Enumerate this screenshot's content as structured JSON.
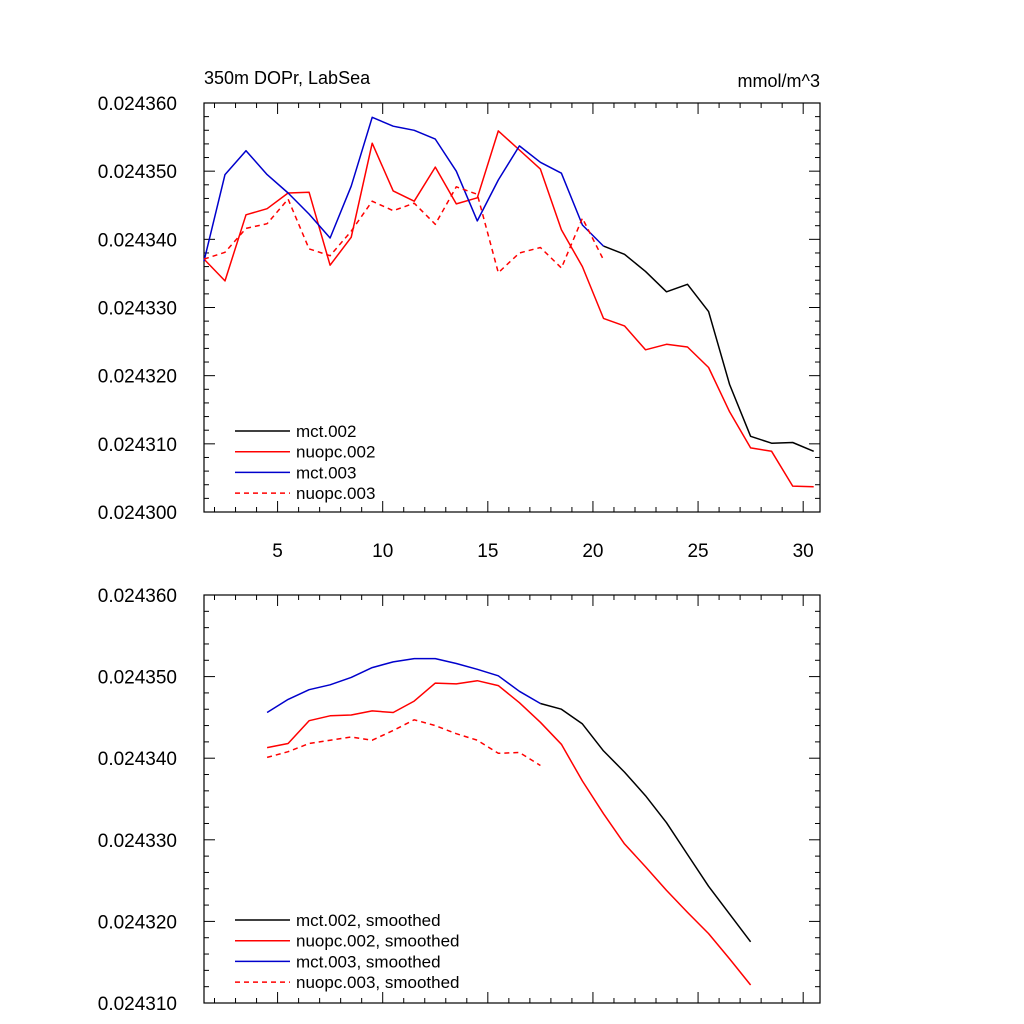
{
  "chart_data": [
    {
      "type": "line",
      "title": "350m DOPr, LabSea",
      "units": "mmol/m^3",
      "xlim": [
        1.5,
        30.8
      ],
      "ylim": [
        0.0243,
        0.02436
      ],
      "xticks": [
        5,
        10,
        15,
        20,
        25,
        30
      ],
      "xtick_labels": [
        "5",
        "10",
        "15",
        "20",
        "25",
        "30"
      ],
      "yticks": [
        0.0243,
        0.02431,
        0.02432,
        0.02433,
        0.02434,
        0.02435,
        0.02436
      ],
      "ytick_labels": [
        "0.024300",
        "0.024310",
        "0.024320",
        "0.024330",
        "0.024340",
        "0.024350",
        "0.024360"
      ],
      "legend_position": "bottom-left",
      "series": [
        {
          "name": "mct.002",
          "color": "#000000",
          "dashed": false,
          "x": [
            20.5,
            21.5,
            22.5,
            23.5,
            24.5,
            25.5,
            26.5,
            27.5,
            28.5,
            29.5,
            30.5
          ],
          "y": [
            0.024339,
            0.0243378,
            0.0243353,
            0.0243323,
            0.0243334,
            0.0243294,
            0.0243187,
            0.0243111,
            0.0243101,
            0.0243102,
            0.0243089
          ]
        },
        {
          "name": "nuopc.002",
          "color": "#ff0000",
          "dashed": false,
          "x": [
            1.5,
            2.5,
            3.5,
            4.5,
            5.5,
            6.5,
            7.5,
            8.5,
            9.5,
            10.5,
            11.5,
            12.5,
            13.5,
            14.5,
            15.5,
            16.5,
            17.5,
            18.5,
            19.5,
            20.5,
            21.5,
            22.5,
            23.5,
            24.5,
            25.5,
            26.5,
            27.5,
            28.5,
            29.5,
            30.5
          ],
          "y": [
            0.0243371,
            0.0243339,
            0.0243436,
            0.0243445,
            0.0243468,
            0.0243469,
            0.0243362,
            0.0243403,
            0.0243541,
            0.0243471,
            0.0243456,
            0.0243506,
            0.0243452,
            0.0243461,
            0.0243559,
            0.0243531,
            0.0243503,
            0.0243414,
            0.024336,
            0.0243284,
            0.0243273,
            0.0243238,
            0.0243246,
            0.0243242,
            0.0243212,
            0.0243147,
            0.0243094,
            0.0243089,
            0.0243038,
            0.0243037
          ]
        },
        {
          "name": "mct.003",
          "color": "#0000cc",
          "dashed": false,
          "x": [
            1.5,
            2.5,
            3.5,
            4.5,
            5.5,
            6.5,
            7.5,
            8.5,
            9.5,
            10.5,
            11.5,
            12.5,
            13.5,
            14.5,
            15.5,
            16.5,
            17.5,
            18.5,
            19.5,
            20.5
          ],
          "y": [
            0.0243368,
            0.0243495,
            0.024353,
            0.0243495,
            0.0243468,
            0.0243437,
            0.0243402,
            0.0243478,
            0.0243579,
            0.0243566,
            0.024356,
            0.0243547,
            0.02435,
            0.0243427,
            0.0243487,
            0.0243537,
            0.0243513,
            0.0243497,
            0.0243421,
            0.024339
          ]
        },
        {
          "name": "nuopc.003",
          "color": "#ff0000",
          "dashed": true,
          "x": [
            1.5,
            2.5,
            3.5,
            4.5,
            5.5,
            6.5,
            7.5,
            8.5,
            9.5,
            10.5,
            11.5,
            12.5,
            13.5,
            14.5,
            15.5,
            16.5,
            17.5,
            18.5,
            19.5,
            20.5
          ],
          "y": [
            0.0243371,
            0.0243381,
            0.0243416,
            0.0243423,
            0.0243459,
            0.0243386,
            0.0243376,
            0.0243412,
            0.0243456,
            0.0243442,
            0.0243453,
            0.0243422,
            0.0243477,
            0.0243466,
            0.0243351,
            0.024338,
            0.0243388,
            0.0243358,
            0.0243431,
            0.024337
          ]
        }
      ]
    },
    {
      "type": "line",
      "xlim": [
        1.5,
        30.8
      ],
      "ylim": [
        0.02431,
        0.02436
      ],
      "xticks": [
        5,
        10,
        15,
        20,
        25,
        30
      ],
      "yticks": [
        0.02431,
        0.02432,
        0.02433,
        0.02434,
        0.02435,
        0.02436
      ],
      "ytick_labels": [
        "0.024310",
        "0.024320",
        "0.024330",
        "0.024340",
        "0.024350",
        "0.024360"
      ],
      "legend_position": "bottom-left",
      "series": [
        {
          "name": "mct.002, smoothed",
          "color": "#000000",
          "dashed": false,
          "x": [
            17.5,
            18.5,
            19.5,
            20.5,
            21.5,
            22.5,
            23.5,
            24.5,
            25.5,
            26.5,
            27.5
          ],
          "y": [
            0.0243467,
            0.024346,
            0.0243442,
            0.0243409,
            0.0243383,
            0.0243354,
            0.0243321,
            0.0243282,
            0.0243243,
            0.0243209,
            0.0243175
          ]
        },
        {
          "name": "nuopc.002, smoothed",
          "color": "#ff0000",
          "dashed": false,
          "x": [
            4.5,
            5.5,
            6.5,
            7.5,
            8.5,
            9.5,
            10.5,
            11.5,
            12.5,
            13.5,
            14.5,
            15.5,
            16.5,
            17.5,
            18.5,
            19.5,
            20.5,
            21.5,
            22.5,
            23.5,
            24.5,
            25.5,
            26.5,
            27.5
          ],
          "y": [
            0.0243413,
            0.0243418,
            0.0243446,
            0.0243452,
            0.0243453,
            0.0243458,
            0.0243456,
            0.024347,
            0.0243492,
            0.0243491,
            0.0243495,
            0.0243489,
            0.0243468,
            0.0243444,
            0.0243417,
            0.0243372,
            0.0243332,
            0.0243295,
            0.0243267,
            0.0243238,
            0.0243211,
            0.0243185,
            0.0243154,
            0.0243122
          ]
        },
        {
          "name": "mct.003, smoothed",
          "color": "#0000cc",
          "dashed": false,
          "x": [
            4.5,
            5.5,
            6.5,
            7.5,
            8.5,
            9.5,
            10.5,
            11.5,
            12.5,
            13.5,
            14.5,
            15.5,
            16.5,
            17.5
          ],
          "y": [
            0.0243456,
            0.0243472,
            0.0243484,
            0.024349,
            0.0243499,
            0.0243511,
            0.0243518,
            0.0243522,
            0.0243522,
            0.0243516,
            0.0243509,
            0.0243501,
            0.0243482,
            0.0243467
          ]
        },
        {
          "name": "nuopc.003, smoothed",
          "color": "#ff0000",
          "dashed": true,
          "x": [
            4.5,
            5.5,
            6.5,
            7.5,
            8.5,
            9.5,
            10.5,
            11.5,
            12.5,
            13.5,
            14.5,
            15.5,
            16.5,
            17.5
          ],
          "y": [
            0.0243401,
            0.0243408,
            0.0243418,
            0.0243422,
            0.0243426,
            0.0243422,
            0.0243434,
            0.0243447,
            0.024344,
            0.024343,
            0.0243422,
            0.0243406,
            0.0243407,
            0.0243391
          ]
        }
      ]
    }
  ]
}
